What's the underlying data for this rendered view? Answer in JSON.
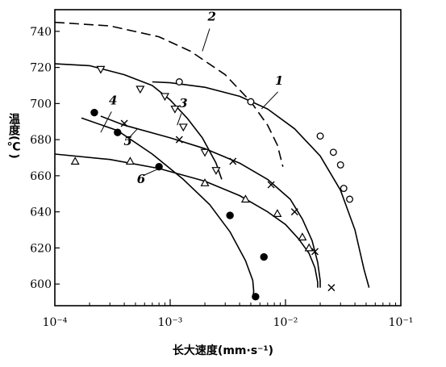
{
  "chart_data": {
    "type": "line",
    "xlabel": "长大速度(mm·s⁻¹)",
    "ylabel": "温度(℃)",
    "x_scale": "log",
    "xlim": [
      0.0001,
      0.1
    ],
    "ylim": [
      588,
      752
    ],
    "x_ticks": [
      {
        "value": 0.0001,
        "label": "10⁻⁴"
      },
      {
        "value": 0.001,
        "label": "10⁻³"
      },
      {
        "value": 0.01,
        "label": "10⁻²"
      },
      {
        "value": 0.1,
        "label": "10⁻¹"
      }
    ],
    "y_ticks": [
      600,
      620,
      640,
      660,
      680,
      700,
      720,
      740
    ],
    "grid": false,
    "series": [
      {
        "name": "1",
        "style": "solid",
        "marker": "circle-open",
        "curve": [
          [
            0.0007,
            712
          ],
          [
            0.001,
            711.5
          ],
          [
            0.002,
            709
          ],
          [
            0.004,
            704
          ],
          [
            0.007,
            697
          ],
          [
            0.012,
            686
          ],
          [
            0.02,
            671
          ],
          [
            0.03,
            652
          ],
          [
            0.04,
            630
          ],
          [
            0.048,
            608
          ],
          [
            0.053,
            598
          ]
        ],
        "points": [
          [
            0.0012,
            712
          ],
          [
            0.005,
            701
          ],
          [
            0.02,
            682
          ],
          [
            0.026,
            673
          ],
          [
            0.03,
            666
          ],
          [
            0.032,
            653
          ],
          [
            0.036,
            647
          ]
        ]
      },
      {
        "name": "2",
        "style": "dashed",
        "marker": "none",
        "curve": [
          [
            0.0001,
            745
          ],
          [
            0.0003,
            743
          ],
          [
            0.0008,
            737
          ],
          [
            0.0015,
            729
          ],
          [
            0.003,
            716
          ],
          [
            0.005,
            701
          ],
          [
            0.007,
            688
          ],
          [
            0.0085,
            677
          ],
          [
            0.0095,
            665
          ]
        ],
        "points": []
      },
      {
        "name": "3",
        "style": "solid",
        "marker": "triangle-down-open",
        "curve": [
          [
            0.0001,
            722
          ],
          [
            0.0002,
            721
          ],
          [
            0.0004,
            716
          ],
          [
            0.0007,
            710
          ],
          [
            0.001,
            702
          ],
          [
            0.0014,
            692
          ],
          [
            0.0019,
            681
          ],
          [
            0.0025,
            667
          ],
          [
            0.0028,
            658
          ]
        ],
        "points": [
          [
            0.00025,
            719
          ],
          [
            0.00055,
            708
          ],
          [
            0.0009,
            704
          ],
          [
            0.0011,
            697
          ],
          [
            0.0013,
            687
          ],
          [
            0.002,
            673
          ],
          [
            0.0025,
            663
          ]
        ]
      },
      {
        "name": "4",
        "style": "solid",
        "marker": "cross",
        "curve": [
          [
            0.00025,
            693
          ],
          [
            0.0004,
            688
          ],
          [
            0.001,
            681
          ],
          [
            0.002,
            675
          ],
          [
            0.004,
            667
          ],
          [
            0.007,
            658
          ],
          [
            0.011,
            647
          ],
          [
            0.014,
            636
          ],
          [
            0.017,
            624
          ],
          [
            0.019,
            612
          ],
          [
            0.02,
            602
          ],
          [
            0.02,
            598
          ]
        ],
        "points": [
          [
            0.0004,
            689
          ],
          [
            0.0012,
            680
          ],
          [
            0.0035,
            668
          ],
          [
            0.0075,
            655
          ],
          [
            0.012,
            640
          ],
          [
            0.018,
            618
          ],
          [
            0.025,
            598
          ]
        ]
      },
      {
        "name": "5",
        "style": "solid",
        "marker": "circle-filled",
        "curve": [
          [
            0.00017,
            692
          ],
          [
            0.00035,
            685
          ],
          [
            0.0007,
            672
          ],
          [
            0.0013,
            658
          ],
          [
            0.0022,
            644
          ],
          [
            0.0033,
            629
          ],
          [
            0.0045,
            613
          ],
          [
            0.0052,
            602
          ],
          [
            0.0053,
            596
          ],
          [
            0.0052,
            592
          ]
        ],
        "points": [
          [
            0.00022,
            695
          ],
          [
            0.00035,
            684
          ],
          [
            0.0008,
            665
          ],
          [
            0.0033,
            638
          ],
          [
            0.0065,
            615
          ],
          [
            0.0055,
            593
          ]
        ]
      },
      {
        "name": "6",
        "style": "solid",
        "marker": "triangle-up-open",
        "curve": [
          [
            0.0001,
            672
          ],
          [
            0.0003,
            669
          ],
          [
            0.0008,
            664
          ],
          [
            0.002,
            657
          ],
          [
            0.004,
            649
          ],
          [
            0.007,
            640
          ],
          [
            0.01,
            633
          ],
          [
            0.013,
            625
          ],
          [
            0.016,
            617
          ],
          [
            0.018,
            609
          ],
          [
            0.019,
            601
          ],
          [
            0.019,
            598
          ]
        ],
        "points": [
          [
            0.00015,
            668
          ],
          [
            0.00045,
            668
          ],
          [
            0.002,
            656
          ],
          [
            0.0045,
            647
          ],
          [
            0.0085,
            639
          ],
          [
            0.014,
            626
          ],
          [
            0.016,
            620
          ]
        ]
      }
    ]
  }
}
